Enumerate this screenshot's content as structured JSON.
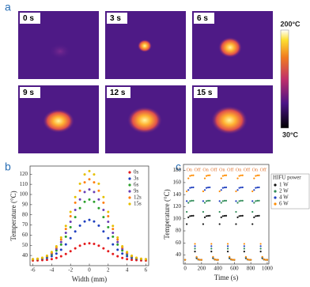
{
  "panel_a": {
    "label": "a",
    "frames": [
      "0 s",
      "3 s",
      "6 s",
      "9 s",
      "12 s",
      "15 s"
    ],
    "colorbar_max": "200°C",
    "colorbar_min": "30°C"
  },
  "chart_data": [
    {
      "type": "scatter",
      "panel_label": "b",
      "x_label": "Width (mm)",
      "y_label": "Temperature (°C)",
      "x": [
        -6,
        -5.5,
        -5,
        -4.5,
        -4,
        -3.5,
        -3,
        -2.5,
        -2,
        -1.5,
        -1,
        -0.5,
        0,
        0.5,
        1,
        1.5,
        2,
        2.5,
        3,
        3.5,
        4,
        4.5,
        5,
        5.5,
        6
      ],
      "xlim": [
        -6.3,
        6.3
      ],
      "xticks": [
        -6,
        -4,
        -2,
        0,
        2,
        4,
        6
      ],
      "ylim": [
        30,
        128
      ],
      "yticks": [
        40,
        50,
        60,
        70,
        80,
        90,
        100,
        110,
        120
      ],
      "legend": "top-right",
      "series": [
        {
          "name": "0s",
          "color": "#e41a1c",
          "values": [
            35.1,
            35.2,
            35.4,
            35.7,
            36.4,
            37.6,
            39.2,
            41.5,
            44.2,
            47,
            49.6,
            51.4,
            52,
            51.4,
            49.6,
            47,
            44.2,
            41.5,
            39.2,
            37.6,
            36.4,
            35.7,
            35.4,
            35.2,
            35.1
          ]
        },
        {
          "name": "3s",
          "color": "#1f3fbf",
          "values": [
            36.2,
            36.4,
            36.8,
            37.7,
            39.3,
            41.9,
            45.7,
            50.9,
            57,
            63.6,
            69.4,
            73.5,
            75,
            73.5,
            69.4,
            63.6,
            57,
            50.9,
            45.7,
            41.9,
            39.3,
            37.7,
            36.8,
            36.4,
            36.2
          ]
        },
        {
          "name": "6s",
          "color": "#2ca02c",
          "values": [
            36.2,
            36.5,
            37.2,
            38.6,
            41,
            44.9,
            50.7,
            58.5,
            67.8,
            77.7,
            86.6,
            92.8,
            95,
            92.8,
            86.6,
            77.7,
            67.8,
            58.5,
            50.7,
            44.9,
            41,
            38.6,
            37.2,
            36.5,
            36.2
          ]
        },
        {
          "name": "9s",
          "color": "#6a3fb5",
          "values": [
            36.3,
            36.6,
            37.4,
            39,
            41.9,
            46.4,
            53.2,
            62.3,
            73.2,
            84.8,
            95.1,
            102.4,
            105,
            102.4,
            95.1,
            84.8,
            73.2,
            62.3,
            53.2,
            46.4,
            41.9,
            39,
            37.4,
            36.6,
            36.3
          ]
        },
        {
          "name": "12s",
          "color": "#ff7f0e",
          "values": [
            36.3,
            36.7,
            37.7,
            39.5,
            42.7,
            47.9,
            55.7,
            66.1,
            78.6,
            91.9,
            103.7,
            112,
            115,
            112,
            103.7,
            91.9,
            78.6,
            66.1,
            55.7,
            47.9,
            42.7,
            39.5,
            37.7,
            36.7,
            36.3
          ]
        },
        {
          "name": "15s",
          "color": "#e6c000",
          "values": [
            36.3,
            36.8,
            37.8,
            39.8,
            43.4,
            49.1,
            57.7,
            69.1,
            82.9,
            97.5,
            110.6,
            119.7,
            123,
            119.7,
            110.6,
            97.5,
            82.9,
            69.1,
            57.7,
            49.1,
            43.4,
            39.8,
            37.8,
            36.8,
            36.3
          ]
        }
      ]
    },
    {
      "type": "scatter",
      "panel_label": "c",
      "x_label": "Time (s)",
      "y_label": "Temperature (°C)",
      "x": [
        0,
        20,
        40,
        60,
        80,
        100,
        120,
        140,
        160,
        180,
        200,
        220,
        240,
        260,
        280,
        300,
        320,
        340,
        360,
        380,
        400,
        420,
        440,
        460,
        480,
        500,
        520,
        540,
        560,
        580,
        600,
        620,
        640,
        660,
        680,
        700,
        720,
        740,
        760,
        780,
        800,
        820,
        840,
        860,
        880,
        900,
        920,
        940,
        960,
        980,
        1000
      ],
      "xlim": [
        -20,
        1020
      ],
      "xticks": [
        0,
        200,
        400,
        600,
        800,
        1000
      ],
      "ylim": [
        25,
        190
      ],
      "yticks": [
        40,
        60,
        80,
        100,
        120,
        140,
        160,
        180
      ],
      "legend": "right",
      "legend_title": "HIFU power",
      "annotations": [
        {
          "text": "On",
          "x": 50
        },
        {
          "text": "Off",
          "x": 150
        },
        {
          "text": "On",
          "x": 250
        },
        {
          "text": "Off",
          "x": 350
        },
        {
          "text": "On",
          "x": 450
        },
        {
          "text": "Off",
          "x": 550
        },
        {
          "text": "On",
          "x": 650
        },
        {
          "text": "Off",
          "x": 750
        },
        {
          "text": "On",
          "x": 850
        },
        {
          "text": "Off",
          "x": 950
        }
      ],
      "series": [
        {
          "name": "1 W",
          "color": "#111111",
          "values": [
            32,
            91.2,
            102.4,
            104.5,
            104.9,
            105,
            45.8,
            34.6,
            32.5,
            32.1,
            32,
            91.2,
            102.4,
            104.5,
            104.9,
            105,
            45.8,
            34.6,
            32.5,
            32.1,
            32,
            91.2,
            102.4,
            104.5,
            104.9,
            105,
            45.8,
            34.6,
            32.5,
            32.1,
            32,
            91.2,
            102.4,
            104.5,
            104.9,
            105,
            45.8,
            34.6,
            32.5,
            32.1,
            32,
            91.2,
            102.4,
            104.5,
            104.9,
            105,
            45.8,
            34.6,
            32.5,
            32.1,
            32
          ]
        },
        {
          "name": "2 W",
          "color": "#2e8b57",
          "values": [
            32,
            111.5,
            126.5,
            129.3,
            129.9,
            130,
            50.5,
            35.5,
            32.7,
            32.1,
            32,
            111.5,
            126.5,
            129.3,
            129.9,
            130,
            50.5,
            35.5,
            32.7,
            32.1,
            32,
            111.5,
            126.5,
            129.3,
            129.9,
            130,
            50.5,
            35.5,
            32.7,
            32.1,
            32,
            111.5,
            126.5,
            129.3,
            129.9,
            130,
            50.5,
            35.5,
            32.7,
            32.1,
            32,
            111.5,
            126.5,
            129.3,
            129.9,
            130,
            50.5,
            35.5,
            32.7,
            32.1,
            32
          ]
        },
        {
          "name": "4 W",
          "color": "#1f3fbf",
          "values": [
            32,
            129.3,
            147.7,
            151.2,
            151.9,
            152,
            54.7,
            36.3,
            32.8,
            32.1,
            32,
            129.3,
            147.7,
            151.2,
            151.9,
            152,
            54.7,
            36.3,
            32.8,
            32.1,
            32,
            129.3,
            147.7,
            151.2,
            151.9,
            152,
            54.7,
            36.3,
            32.8,
            32.1,
            32,
            129.3,
            147.7,
            151.2,
            151.9,
            152,
            54.7,
            36.3,
            32.8,
            32.1,
            32,
            129.3,
            147.7,
            151.2,
            151.9,
            152,
            54.7,
            36.3,
            32.8,
            32.1,
            32
          ]
        },
        {
          "name": "6 W",
          "color": "#ff8c00",
          "values": [
            32,
            145.5,
            167,
            171,
            171.9,
            172,
            58.5,
            37,
            33,
            32.1,
            32,
            145.5,
            167,
            171,
            171.9,
            172,
            58.5,
            37,
            33,
            32.1,
            32,
            145.5,
            167,
            171,
            171.9,
            172,
            58.5,
            37,
            33,
            32.1,
            32,
            145.5,
            167,
            171,
            171.9,
            172,
            58.5,
            37,
            33,
            32.1,
            32,
            145.5,
            167,
            171,
            171.9,
            172,
            58.5,
            37,
            33,
            32.1,
            32
          ]
        }
      ]
    }
  ]
}
